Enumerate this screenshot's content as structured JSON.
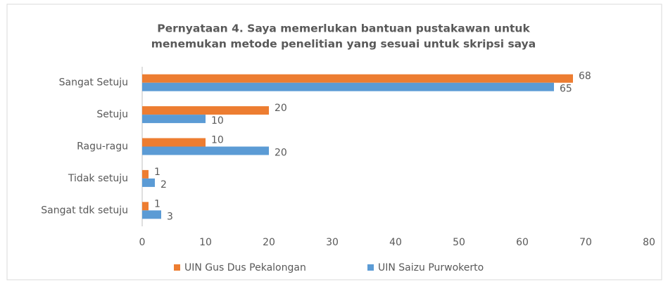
{
  "chart_data": {
    "type": "barh",
    "title": [
      "Pernyataan 4. Saya memerlukan bantuan pustakawan untuk",
      "menemukan metode penelitian yang sesuai untuk skripsi saya"
    ],
    "categories": [
      "Sangat Setuju",
      "Setuju",
      "Ragu-ragu",
      "Tidak setuju",
      "Sangat tdk setuju"
    ],
    "series": [
      {
        "name": "UIN Gus Dus Pekalongan",
        "color": "#ed7d31",
        "values": [
          68,
          20,
          10,
          1,
          1
        ]
      },
      {
        "name": "UIN Saizu Purwokerto",
        "color": "#5b9bd5",
        "values": [
          65,
          10,
          20,
          2,
          3
        ]
      }
    ],
    "xlim": [
      0,
      80
    ],
    "xticks": [
      0,
      10,
      20,
      30,
      40,
      50,
      60,
      70,
      80
    ],
    "grid": false,
    "legend": "bottom"
  }
}
